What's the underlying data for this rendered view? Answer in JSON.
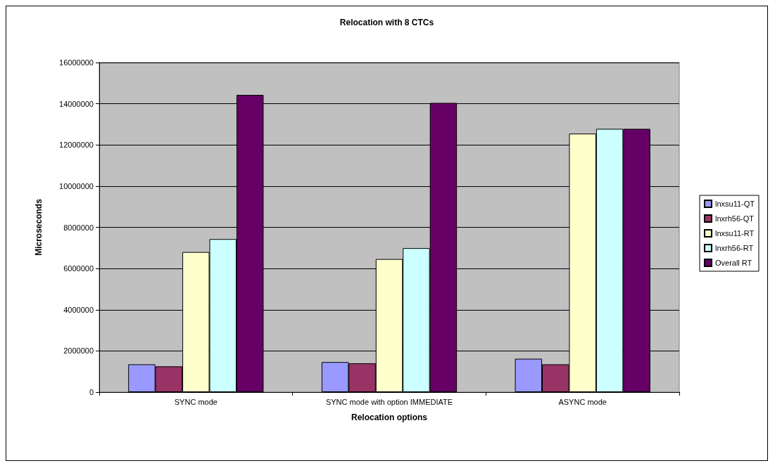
{
  "chart_data": {
    "type": "bar",
    "title": "Relocation with 8 CTCs",
    "xlabel": "Relocation options",
    "ylabel": "Microseconds",
    "categories": [
      "SYNC mode",
      "SYNC mode with option IMMEDIATE",
      "ASYNC mode"
    ],
    "series": [
      {
        "name": "lnxsu11-QT",
        "color": "#9999ff",
        "values": [
          1350000,
          1460000,
          1620000
        ]
      },
      {
        "name": "lnxrh56-QT",
        "color": "#993366",
        "values": [
          1250000,
          1400000,
          1350000
        ]
      },
      {
        "name": "lnxsu11-RT",
        "color": "#ffffcc",
        "values": [
          6800000,
          6460000,
          12550000
        ]
      },
      {
        "name": "lnxrh56-RT",
        "color": "#ccffff",
        "values": [
          7430000,
          6990000,
          12780000
        ]
      },
      {
        "name": "Overall RT",
        "color": "#660066",
        "values": [
          14430000,
          14040000,
          12780000
        ]
      }
    ],
    "ylim": [
      0,
      16000000
    ],
    "yticks": [
      0,
      2000000,
      4000000,
      6000000,
      8000000,
      10000000,
      12000000,
      14000000,
      16000000
    ],
    "grid": "y",
    "legend": "right"
  }
}
